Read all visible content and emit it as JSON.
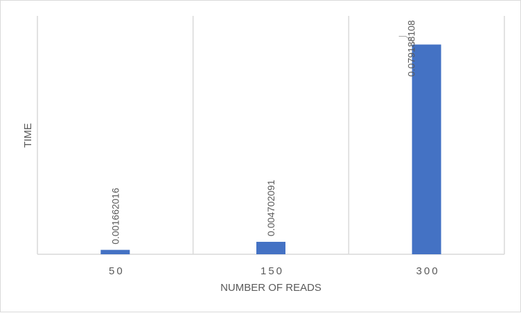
{
  "chart_data": {
    "type": "bar",
    "categories": [
      "50",
      "150",
      "300"
    ],
    "values": [
      0.001662016,
      0.004702091,
      0.079188108
    ],
    "data_labels": [
      "0.001662016",
      "0.004702091",
      "0.079188108"
    ],
    "title": "",
    "xlabel": "NUMBER OF READS",
    "ylabel": "TIME",
    "ylim": [
      0,
      0.09
    ],
    "grid": "vertical category separators",
    "legend": "none",
    "bar_color": "#4472C4",
    "gridline_color": "#d9d9d9",
    "text_color": "#595959"
  }
}
